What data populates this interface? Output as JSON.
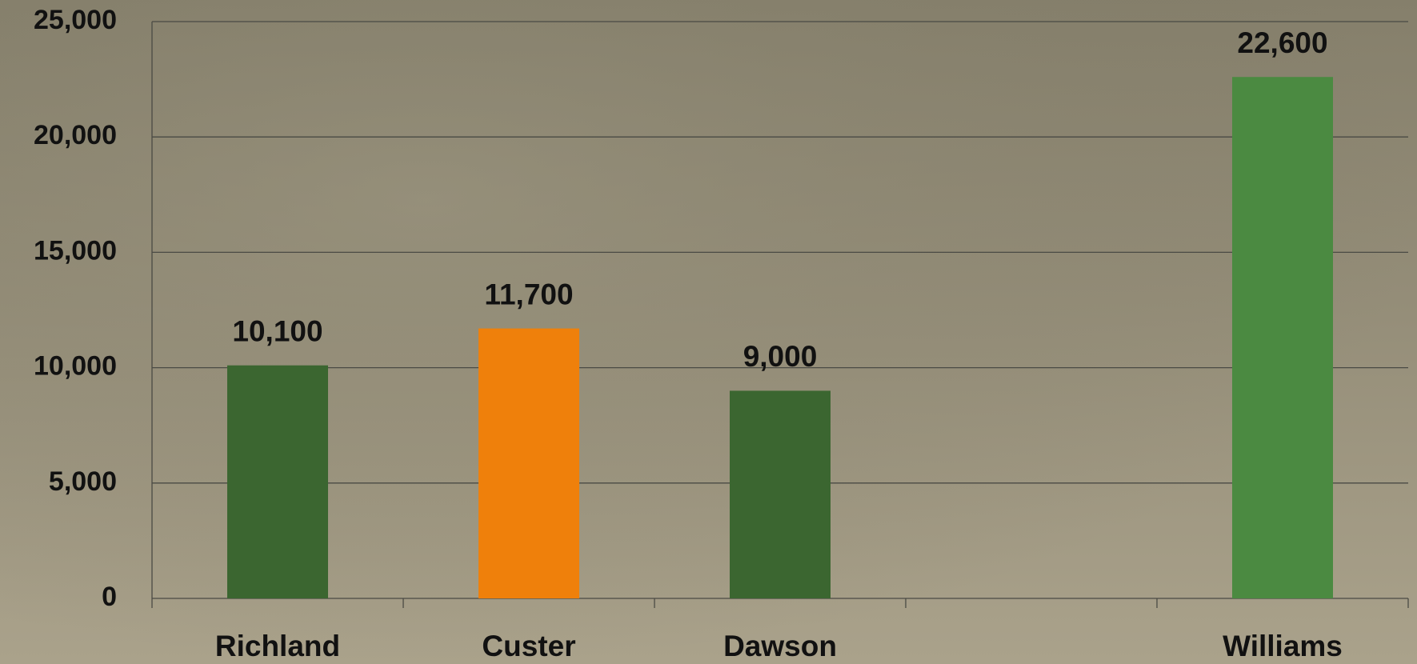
{
  "chart_data": {
    "type": "bar",
    "categories": [
      "Richland",
      "Custer",
      "Dawson",
      null,
      "Williams"
    ],
    "values": [
      10100,
      11700,
      9000,
      null,
      22600
    ],
    "value_labels": [
      "10,100",
      "11,700",
      "9,000",
      null,
      "22,600"
    ],
    "colors": [
      "#3b6630",
      "#ef800b",
      "#3b6630",
      null,
      "#4b8a41"
    ],
    "ylim": [
      0,
      25000
    ],
    "yticks": [
      0,
      {
        "value": 5000,
        "label": "5,000"
      },
      {
        "value": 10000,
        "label": "10,000"
      },
      {
        "value": 15000,
        "label": "15,000"
      },
      {
        "value": 20000,
        "label": "20,000"
      },
      {
        "value": 25000,
        "label": "25,000"
      }
    ],
    "grid": true
  }
}
